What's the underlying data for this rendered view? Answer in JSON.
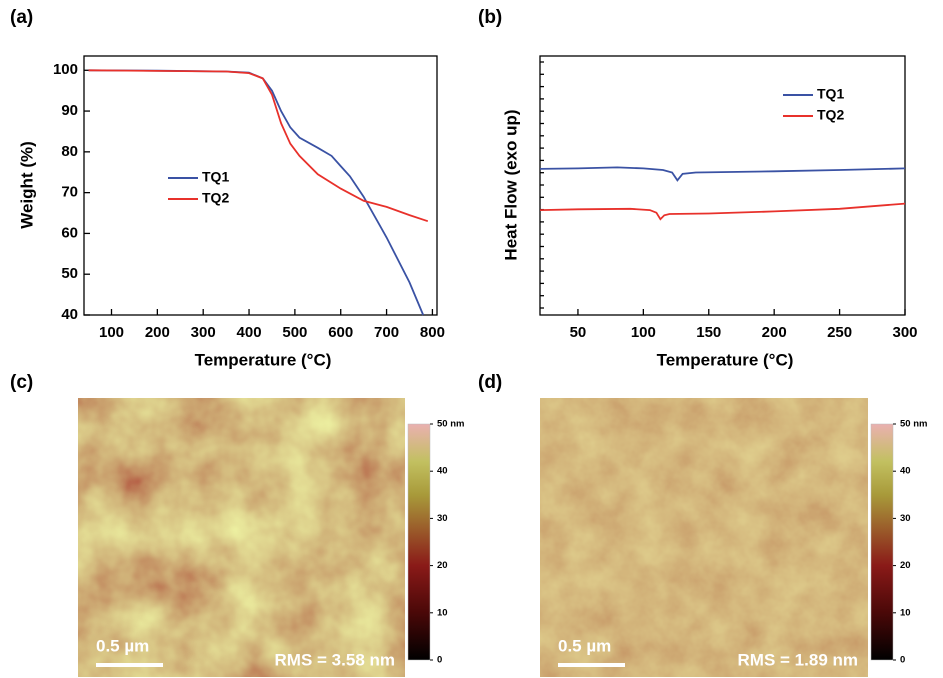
{
  "chart_data": [
    {
      "type": "line",
      "panel_label": "(a)",
      "x_label": "Temperature (°C)",
      "y_label": "Weight (%)",
      "xlim": [
        40,
        810
      ],
      "xticks": [
        100,
        200,
        300,
        400,
        500,
        600,
        700,
        800
      ],
      "ylim": [
        40,
        103.5
      ],
      "yticks": [
        40,
        50,
        60,
        70,
        80,
        90,
        100
      ],
      "legend": "left",
      "series": [
        {
          "name": "TQ1",
          "color": "#3a52a4",
          "x": [
            50,
            200,
            350,
            400,
            430,
            450,
            470,
            490,
            510,
            550,
            580,
            600,
            620,
            650,
            700,
            750,
            780
          ],
          "values": [
            100,
            99.9,
            99.7,
            99.4,
            98,
            95,
            90,
            86,
            83.5,
            81,
            79,
            76.5,
            74,
            69,
            59,
            48,
            40
          ]
        },
        {
          "name": "TQ2",
          "color": "#e8312b",
          "x": [
            50,
            350,
            400,
            430,
            450,
            470,
            490,
            510,
            550,
            600,
            650,
            700,
            750,
            790
          ],
          "values": [
            100,
            99.7,
            99.3,
            98,
            94,
            87,
            82,
            79,
            74.5,
            71,
            68,
            66.5,
            64.5,
            63
          ]
        }
      ]
    },
    {
      "type": "line",
      "panel_label": "(b)",
      "x_label": "Temperature (°C)",
      "y_label": "Heat Flow (exo up)",
      "xlim": [
        21,
        300
      ],
      "xticks": [
        50,
        100,
        150,
        200,
        250,
        300
      ],
      "ylim": [
        0,
        10
      ],
      "legend": "upper-right",
      "series": [
        {
          "name": "TQ1",
          "color": "#3a52a4",
          "x": [
            21,
            50,
            80,
            100,
            115,
            122,
            126,
            130,
            140,
            200,
            250,
            300
          ],
          "values": [
            5.64,
            5.66,
            5.7,
            5.66,
            5.6,
            5.5,
            5.2,
            5.45,
            5.5,
            5.55,
            5.6,
            5.66
          ]
        },
        {
          "name": "TQ2",
          "color": "#e8312b",
          "x": [
            21,
            50,
            90,
            105,
            110,
            113,
            116,
            120,
            150,
            200,
            250,
            300
          ],
          "values": [
            4.05,
            4.08,
            4.1,
            4.05,
            3.95,
            3.7,
            3.85,
            3.9,
            3.92,
            4.0,
            4.1,
            4.3
          ]
        }
      ]
    },
    {
      "type": "image",
      "panel_label": "(c)",
      "scale_bar": "0.5 µm",
      "annotation": "RMS = 3.58 nm",
      "clim": [
        0,
        50
      ],
      "cticks": [
        0,
        10,
        20,
        30,
        40,
        {
          "value": 50,
          "label": "50 nm"
        }
      ]
    },
    {
      "type": "image",
      "panel_label": "(d)",
      "scale_bar": "0.5 µm",
      "annotation": "RMS = 1.89 nm",
      "clim": [
        0,
        50
      ],
      "cticks": [
        0,
        10,
        20,
        30,
        40,
        {
          "value": 50,
          "label": "50 nm"
        }
      ]
    }
  ]
}
